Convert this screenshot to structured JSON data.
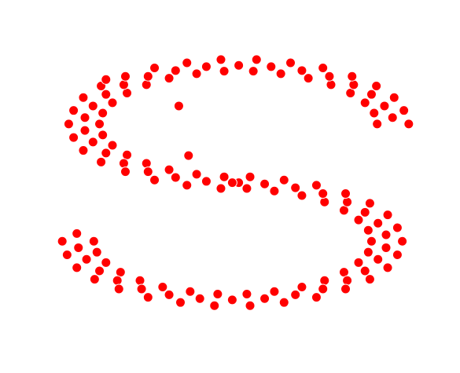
{
  "chart_data": {
    "type": "scatter",
    "color": "#ff0000",
    "edgecolor": "#ffffff",
    "xlim": [
      -1.1,
      1.1
    ],
    "ylim": [
      -2.2,
      2.2
    ],
    "x": [
      0.875,
      0.856,
      0.8,
      0.71,
      0.59,
      0.45,
      0.28,
      0.11,
      -0.07,
      -0.24,
      -0.41,
      -0.55,
      -0.67,
      -0.76,
      -0.82,
      -0.84,
      -0.82,
      -0.76,
      -0.67,
      -0.55,
      -0.41,
      -0.24,
      -0.07,
      0.97,
      0.92,
      0.84,
      0.73,
      0.58,
      0.41,
      0.22,
      0.02,
      -0.18,
      -0.37,
      -0.54,
      -0.69,
      -0.8,
      -0.88,
      -0.93,
      -0.93,
      -0.88,
      -0.8,
      -0.69,
      -0.54,
      -0.37,
      -0.18,
      0.02,
      1.07,
      1.04,
      0.98,
      0.87,
      0.72,
      0.54,
      0.34,
      0.13,
      -0.09,
      -0.3,
      -0.5,
      -0.68,
      -0.83,
      -0.94,
      -1.0,
      -1.03,
      -1.0,
      -0.94,
      -0.83,
      -0.68,
      -0.5,
      -0.3,
      -0.09,
      -0.875,
      -0.856,
      -0.8,
      -0.71,
      -0.59,
      -0.45,
      -0.28,
      -0.11,
      0.07,
      0.24,
      0.41,
      0.55,
      0.67,
      0.76,
      0.82,
      0.84,
      0.82,
      0.76,
      0.67,
      0.55,
      0.41,
      0.24,
      0.07,
      -0.97,
      -0.92,
      -0.84,
      -0.73,
      -0.58,
      -0.41,
      -0.22,
      -0.02,
      0.18,
      0.37,
      0.54,
      0.69,
      0.8,
      0.88,
      0.93,
      0.93,
      0.88,
      0.8,
      0.69,
      0.54,
      0.37,
      0.18,
      -0.02,
      -1.07,
      -1.04,
      -0.98,
      -0.87,
      -0.72,
      -0.54,
      -0.34,
      -0.13,
      0.09,
      0.3,
      0.5,
      0.68,
      0.83,
      0.94,
      1.0,
      1.03,
      1.0,
      0.94,
      0.83,
      0.68,
      0.5,
      0.3,
      0.09,
      -0.8,
      -0.35,
      -0.98,
      -0.29
    ],
    "y": [
      0.97,
      1.14,
      1.3,
      1.45,
      1.58,
      1.68,
      1.75,
      1.79,
      1.79,
      1.75,
      1.68,
      1.58,
      1.45,
      1.3,
      1.14,
      0.97,
      0.8,
      0.64,
      0.49,
      0.36,
      0.26,
      0.19,
      0.15,
      1.07,
      1.25,
      1.43,
      1.58,
      1.71,
      1.8,
      1.86,
      1.88,
      1.86,
      1.8,
      1.71,
      1.58,
      1.43,
      1.25,
      1.07,
      0.87,
      0.69,
      0.52,
      0.36,
      0.23,
      0.14,
      0.08,
      0.06,
      0.97,
      1.18,
      1.38,
      1.56,
      1.71,
      1.84,
      1.92,
      1.97,
      1.97,
      1.92,
      1.84,
      1.71,
      1.56,
      1.38,
      1.18,
      0.97,
      0.76,
      0.56,
      0.38,
      0.23,
      0.1,
      0.02,
      -0.03,
      -0.85,
      -1.02,
      -1.18,
      -1.33,
      -1.46,
      -1.56,
      -1.63,
      -1.67,
      -1.67,
      -1.63,
      -1.56,
      -1.46,
      -1.33,
      -1.18,
      -1.02,
      -0.85,
      -0.68,
      -0.52,
      -0.37,
      -0.24,
      -0.14,
      -0.07,
      -0.03,
      -0.95,
      -1.13,
      -1.31,
      -1.46,
      -1.59,
      -1.68,
      -1.74,
      -1.76,
      -1.74,
      -1.68,
      -1.59,
      -1.46,
      -1.31,
      -1.13,
      -0.95,
      -0.75,
      -0.57,
      -0.4,
      -0.24,
      -0.11,
      -0.02,
      0.04,
      0.06,
      -0.85,
      -1.06,
      -1.26,
      -1.44,
      -1.59,
      -1.72,
      -1.8,
      -1.85,
      -1.85,
      -1.8,
      -1.72,
      -1.59,
      -1.44,
      -1.26,
      -1.06,
      -0.85,
      -0.64,
      -0.44,
      -0.26,
      -0.11,
      0.02,
      0.1,
      0.15,
      1.66,
      1.25,
      -0.73,
      0.48
    ]
  }
}
